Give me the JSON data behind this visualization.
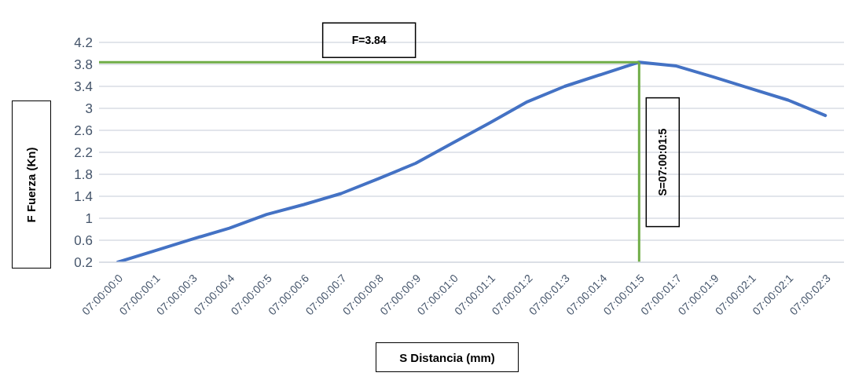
{
  "chart_data": {
    "type": "line",
    "xlabel": "S Distancia (mm)",
    "ylabel": "F Fuerza (Kn)",
    "categories": [
      "07:00:00:0",
      "07:00:00:1",
      "07:00:00:3",
      "07:00:00:4",
      "07:00:00:5",
      "07:00:00:6",
      "07:00:00:7",
      "07:00:00:8",
      "07:00:00:9",
      "07:00:01:0",
      "07:00:01:1",
      "07:00:01:2",
      "07:00:01:3",
      "07:00:01:4",
      "07:00:01:5",
      "07:00:01:7",
      "07:00:01:9",
      "07:00:02:1",
      "07:00:02:1",
      "07:00:02:3"
    ],
    "series": [
      {
        "color": "#4472c4",
        "values": [
          0.2,
          0.41,
          0.62,
          0.82,
          1.07,
          1.25,
          1.45,
          1.72,
          2.0,
          2.37,
          2.74,
          3.12,
          3.4,
          3.62,
          3.84,
          3.77,
          3.57,
          3.36,
          3.15,
          2.87
        ]
      }
    ],
    "ylim": [
      0.2,
      4.2
    ],
    "yticks": [
      0.2,
      0.6,
      1,
      1.4,
      1.8,
      2.2,
      2.6,
      3,
      3.4,
      3.8,
      4.2
    ],
    "grid": "y",
    "marker": "none",
    "line_style": "solid",
    "legend": false,
    "ref_lines": [
      {
        "axis": "y",
        "value": 3.84,
        "label": "F=3.84",
        "color": "#70ad47"
      },
      {
        "axis": "x",
        "value": "07:00:01:5",
        "label": "S=07:00:01:5",
        "color": "#70ad47"
      }
    ]
  }
}
